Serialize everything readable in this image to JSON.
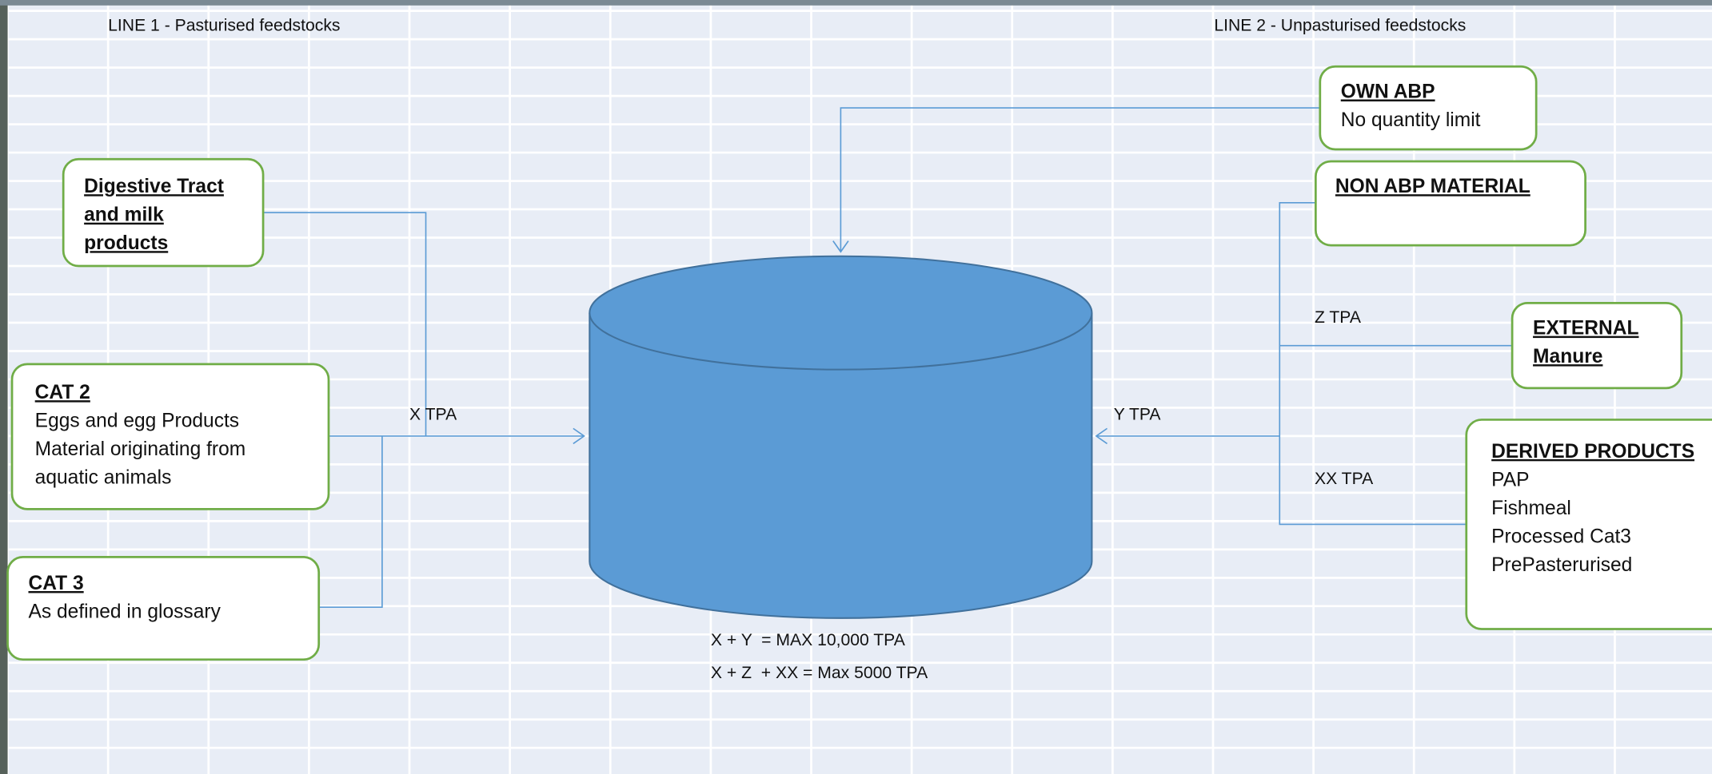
{
  "headers": {
    "line1": "LINE 1 - Pasturised feedstocks",
    "line2": "LINE 2 - Unpasturised feedstocks"
  },
  "nodes": [
    {
      "title": [
        "Digestive Tract",
        "and milk",
        "products"
      ],
      "lines": []
    },
    {
      "title": [
        "CAT 2"
      ],
      "lines": [
        "Eggs and egg Products",
        "Material originating from",
        "aquatic animals"
      ]
    },
    {
      "title": [
        "CAT 3"
      ],
      "lines": [
        "As defined in glossary"
      ]
    },
    {
      "title": [
        "OWN ABP"
      ],
      "lines": [
        "No quantity limit"
      ]
    },
    {
      "title": [
        "NON ABP MATERIAL"
      ],
      "lines": []
    },
    {
      "title": [
        "EXTERNAL",
        "Manure"
      ],
      "lines": []
    },
    {
      "title": [
        "DERIVED PRODUCTS"
      ],
      "lines": [
        "PAP",
        "Fishmeal",
        "Processed Cat3",
        "PrePasterurised"
      ]
    }
  ],
  "edge_labels": [
    "X TPA",
    "Y TPA",
    "Z TPA",
    "XX TPA"
  ],
  "formulas": [
    "X + Y  = MAX 10,000 TPA",
    "X + Z  + XX = Max 5000 TPA"
  ]
}
